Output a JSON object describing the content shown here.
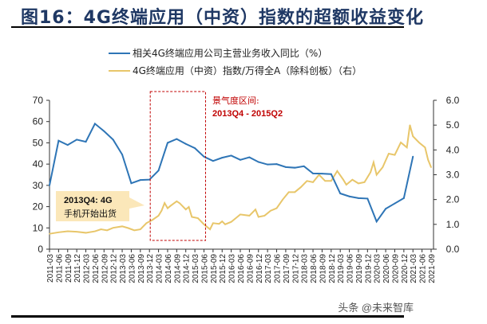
{
  "title": "图16：4G终端应用（中资）指数的超额收益变化",
  "watermark": "头条 @未来智库",
  "chart_data": {
    "type": "line",
    "title": "图16：4G终端应用（中资）指数的超额收益变化",
    "legend_position": "top-center",
    "grid": false,
    "categories": [
      "2011-03",
      "2011-06",
      "2011-09",
      "2011-12",
      "2012-03",
      "2012-06",
      "2012-09",
      "2012-12",
      "2013-03",
      "2013-06",
      "2013-09",
      "2013-12",
      "2014-03",
      "2014-06",
      "2014-09",
      "2014-12",
      "2015-03",
      "2015-06",
      "2015-09",
      "2015-12",
      "2016-03",
      "2016-06",
      "2016-09",
      "2016-12",
      "2017-03",
      "2017-06",
      "2017-09",
      "2017-12",
      "2018-03",
      "2018-06",
      "2018-09",
      "2018-12",
      "2019-03",
      "2019-06",
      "2019-09",
      "2019-12",
      "2020-03",
      "2020-06",
      "2020-09",
      "2020-12",
      "2021-03",
      "2021-06",
      "2021-09"
    ],
    "left_axis": {
      "ylim": [
        0,
        70
      ],
      "ticks": [
        "0",
        "10",
        "20",
        "30",
        "40",
        "50",
        "60",
        "70"
      ]
    },
    "right_axis": {
      "ylim": [
        0,
        6
      ],
      "ticks": [
        "0.0",
        "1.0",
        "2.0",
        "3.0",
        "4.0",
        "5.0",
        "6.0"
      ]
    },
    "series": [
      {
        "name": "相关4G终端应用公司主营业务收入同比（%）",
        "axis": "left",
        "color": "#2e75b6",
        "values": [
          30,
          51,
          49,
          51.5,
          50.5,
          59,
          55.5,
          51.5,
          44.5,
          31,
          32.5,
          32.7,
          37,
          50,
          51.8,
          49.5,
          47.5,
          43.5,
          41.5,
          43,
          44,
          42,
          43.2,
          41,
          39.8,
          40,
          38.6,
          38.3,
          39,
          35.6,
          35.5,
          35.3,
          26.2,
          24.8,
          24,
          23.8,
          13,
          19,
          21.5,
          24,
          43.5,
          null,
          null
        ]
      },
      {
        "name": "4G终端应用（中资）指数/万得全A（除科创板）（右）",
        "axis": "right",
        "color": "#e8c66a",
        "points": [
          [
            "2011-03",
            0.62
          ],
          [
            "2011-06",
            0.68
          ],
          [
            "2011-09",
            0.72
          ],
          [
            "2011-12",
            0.7
          ],
          [
            "2012-03",
            0.66
          ],
          [
            "2012-06",
            0.72
          ],
          [
            "2012-08",
            0.8
          ],
          [
            "2012-10",
            0.76
          ],
          [
            "2012-12",
            0.86
          ],
          [
            "2013-03",
            0.92
          ],
          [
            "2013-05",
            0.85
          ],
          [
            "2013-07",
            0.76
          ],
          [
            "2013-09",
            0.8
          ],
          [
            "2013-11",
            1.05
          ],
          [
            "2014-01",
            1.18
          ],
          [
            "2014-03",
            1.35
          ],
          [
            "2014-04",
            1.55
          ],
          [
            "2014-05",
            1.86
          ],
          [
            "2014-06",
            1.65
          ],
          [
            "2014-07",
            1.75
          ],
          [
            "2014-09",
            1.93
          ],
          [
            "2014-10",
            1.85
          ],
          [
            "2014-12",
            1.6
          ],
          [
            "2015-01",
            1.7
          ],
          [
            "2015-02",
            1.3
          ],
          [
            "2015-04",
            1.25
          ],
          [
            "2015-06",
            1.0
          ],
          [
            "2015-08",
            0.8
          ],
          [
            "2015-09",
            1.05
          ],
          [
            "2015-11",
            1.02
          ],
          [
            "2015-12",
            1.12
          ],
          [
            "2016-01",
            1.0
          ],
          [
            "2016-03",
            1.1
          ],
          [
            "2016-06",
            1.4
          ],
          [
            "2016-09",
            1.35
          ],
          [
            "2016-11",
            1.6
          ],
          [
            "2016-12",
            1.3
          ],
          [
            "2017-02",
            1.35
          ],
          [
            "2017-04",
            1.55
          ],
          [
            "2017-06",
            1.65
          ],
          [
            "2017-08",
            2.0
          ],
          [
            "2017-10",
            2.3
          ],
          [
            "2017-12",
            2.3
          ],
          [
            "2018-02",
            2.5
          ],
          [
            "2018-04",
            2.75
          ],
          [
            "2018-06",
            2.7
          ],
          [
            "2018-08",
            3.0
          ],
          [
            "2018-10",
            2.75
          ],
          [
            "2018-12",
            2.75
          ],
          [
            "2019-02",
            3.15
          ],
          [
            "2019-04",
            2.8
          ],
          [
            "2019-05",
            2.6
          ],
          [
            "2019-07",
            2.8
          ],
          [
            "2019-09",
            2.65
          ],
          [
            "2019-11",
            2.7
          ],
          [
            "2020-01",
            3.1
          ],
          [
            "2020-02",
            3.5
          ],
          [
            "2020-03",
            3.0
          ],
          [
            "2020-05",
            3.3
          ],
          [
            "2020-07",
            3.85
          ],
          [
            "2020-09",
            3.8
          ],
          [
            "2020-11",
            4.3
          ],
          [
            "2021-01",
            4.1
          ],
          [
            "2021-02",
            5.0
          ],
          [
            "2021-03",
            4.55
          ],
          [
            "2021-05",
            4.3
          ],
          [
            "2021-07",
            4.1
          ],
          [
            "2021-08",
            3.6
          ],
          [
            "2021-09",
            3.3
          ]
        ]
      }
    ],
    "annotations": {
      "shaded_period": {
        "label_line1": "景气度区间:",
        "label_line2": "2013Q4 - 2015Q2",
        "from": "2013-12",
        "to": "2015-06",
        "color": "#c00000"
      },
      "callout": {
        "line1": "2013Q4:  4G",
        "line2": "手机开始出货",
        "points_to": "2013-12"
      }
    }
  }
}
